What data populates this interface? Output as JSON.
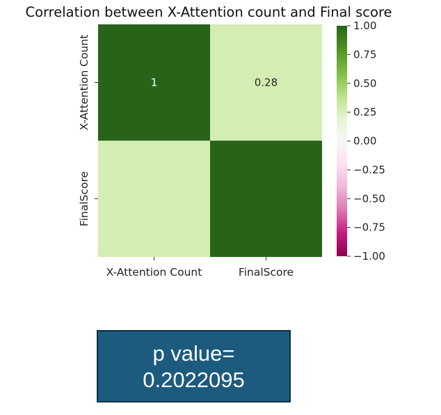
{
  "chart_data": {
    "type": "heatmap",
    "title": "Correlation between X-Attention count and Final score",
    "rows": [
      "X-Attention Count",
      "FinalScore"
    ],
    "columns": [
      "X-Attention Count",
      "FinalScore"
    ],
    "values": [
      [
        1,
        0.28
      ],
      [
        0.28,
        1
      ]
    ],
    "annotations": [
      [
        "1",
        "0.28"
      ],
      [
        "",
        ""
      ]
    ],
    "colorbar": {
      "range": [
        -1.0,
        1.0
      ],
      "ticks": [
        "1.00",
        "0.75",
        "0.50",
        "0.25",
        "0.00",
        "−0.25",
        "−0.50",
        "−0.75",
        "−1.00"
      ],
      "colormap": "PiYG",
      "low_color": "#8e0152",
      "mid_color": "#f7f7f7",
      "high_color": "#276419"
    }
  },
  "stats_box": {
    "line1": "p value=",
    "line2": "0.2022095",
    "background": "#1c5a7e"
  }
}
